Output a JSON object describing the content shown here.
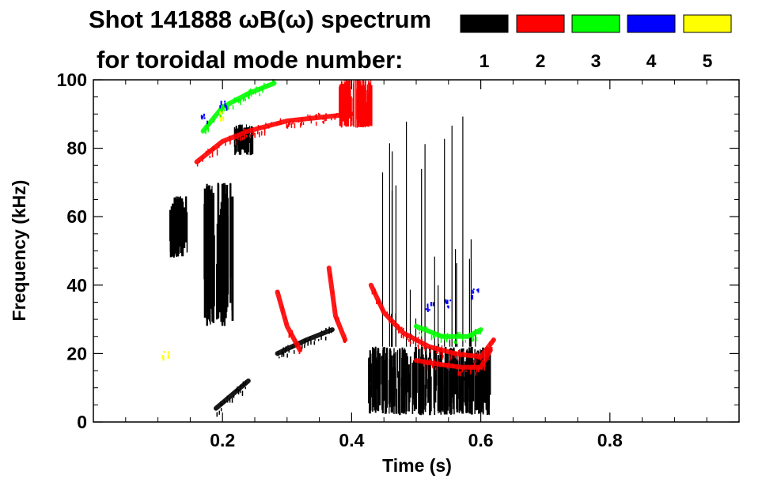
{
  "chart_data": {
    "type": "heatmap",
    "title_line1": "Shot 141888 ωB(ω) spectrum",
    "title_line2": "for toroidal mode number:",
    "xlabel": "Time (s)",
    "ylabel": "Frequency (kHz)",
    "xlim": [
      0.0,
      1.0
    ],
    "ylim": [
      0,
      100
    ],
    "x_ticks": [
      0.2,
      0.4,
      0.6,
      0.8
    ],
    "x_tick_labels": [
      "0.2",
      "0.4",
      "0.6",
      "0.8"
    ],
    "y_ticks": [
      0,
      20,
      40,
      60,
      80,
      100
    ],
    "y_tick_labels": [
      "0",
      "20",
      "40",
      "60",
      "80",
      "100"
    ],
    "legend": [
      {
        "label": "1",
        "color": "#000000"
      },
      {
        "label": "2",
        "color": "#ff0000"
      },
      {
        "label": "3",
        "color": "#00ff00"
      },
      {
        "label": "4",
        "color": "#0000ff"
      },
      {
        "label": "5",
        "color": "#ffff00"
      }
    ],
    "legend_placement": "top-right",
    "features": [
      {
        "mode": 1,
        "kind": "region",
        "t": [
          0.115,
          0.145
        ],
        "f": [
          48,
          66
        ]
      },
      {
        "mode": 1,
        "kind": "region",
        "t": [
          0.17,
          0.215
        ],
        "f": [
          28,
          70
        ]
      },
      {
        "mode": 1,
        "kind": "region",
        "t": [
          0.425,
          0.615
        ],
        "f": [
          2,
          22
        ]
      },
      {
        "mode": 1,
        "kind": "region",
        "t": [
          0.215,
          0.245
        ],
        "f": [
          78,
          87
        ]
      },
      {
        "mode": 1,
        "kind": "stripes",
        "t": [
          0.44,
          0.6
        ],
        "f": [
          22,
          90
        ]
      },
      {
        "mode": 1,
        "kind": "track",
        "t": [
          0.19,
          0.215,
          0.24
        ],
        "f": [
          4,
          8,
          12
        ]
      },
      {
        "mode": 1,
        "kind": "track",
        "t": [
          0.285,
          0.33,
          0.37
        ],
        "f": [
          20,
          24,
          27
        ]
      },
      {
        "mode": 2,
        "kind": "track",
        "t": [
          0.16,
          0.2,
          0.24,
          0.3,
          0.35,
          0.4
        ],
        "f": [
          76,
          82,
          85,
          88,
          89,
          90
        ]
      },
      {
        "mode": 2,
        "kind": "region",
        "t": [
          0.38,
          0.43
        ],
        "f": [
          86,
          100
        ]
      },
      {
        "mode": 2,
        "kind": "track",
        "t": [
          0.43,
          0.45,
          0.48,
          0.52,
          0.56,
          0.6,
          0.62
        ],
        "f": [
          40,
          32,
          26,
          22,
          20,
          19,
          24
        ]
      },
      {
        "mode": 2,
        "kind": "track",
        "t": [
          0.5,
          0.53,
          0.57,
          0.6,
          0.615
        ],
        "f": [
          18,
          17,
          16,
          16,
          21
        ]
      },
      {
        "mode": 2,
        "kind": "track",
        "t": [
          0.285,
          0.3,
          0.32
        ],
        "f": [
          38,
          28,
          21
        ]
      },
      {
        "mode": 2,
        "kind": "track",
        "t": [
          0.365,
          0.375,
          0.39
        ],
        "f": [
          45,
          31,
          24
        ]
      },
      {
        "mode": 3,
        "kind": "track",
        "t": [
          0.17,
          0.2,
          0.24,
          0.28
        ],
        "f": [
          85,
          92,
          96,
          99
        ]
      },
      {
        "mode": 3,
        "kind": "track",
        "t": [
          0.5,
          0.54,
          0.58,
          0.6
        ],
        "f": [
          28,
          25,
          25,
          27
        ]
      },
      {
        "mode": 4,
        "kind": "points",
        "t": [
          0.17,
          0.2,
          0.52,
          0.55,
          0.59
        ],
        "f": [
          89,
          93,
          34,
          35,
          38
        ]
      },
      {
        "mode": 5,
        "kind": "points",
        "t": [
          0.11,
          0.2
        ],
        "f": [
          20,
          90
        ]
      }
    ]
  }
}
